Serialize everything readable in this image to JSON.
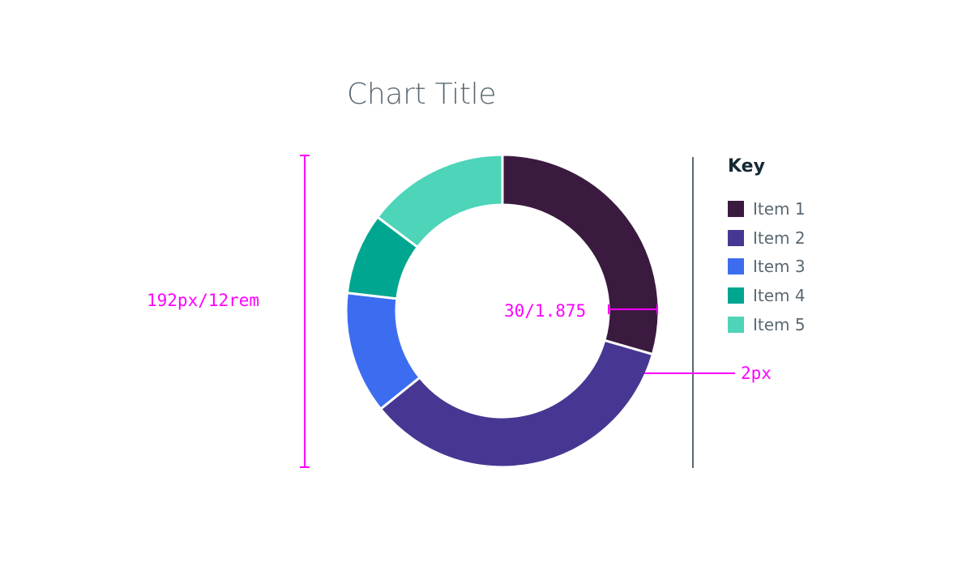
{
  "chart_data": {
    "type": "donut",
    "title": "Chart Title",
    "categories": [
      "Item 1",
      "Item 2",
      "Item 3",
      "Item 4",
      "Item 5"
    ],
    "values": [
      28,
      33,
      12,
      8,
      14
    ],
    "colors": [
      "#3b1a40",
      "#473793",
      "#3c6df0",
      "#00a68f",
      "#4dd4b9"
    ],
    "legend_title": "Key",
    "legend_position": "right"
  },
  "annotations": {
    "height_label": "192px/12rem",
    "ring_label": "30/1.875",
    "gap_label": "2px",
    "color": "#ff00ff"
  },
  "divider_color": "#5a6872"
}
